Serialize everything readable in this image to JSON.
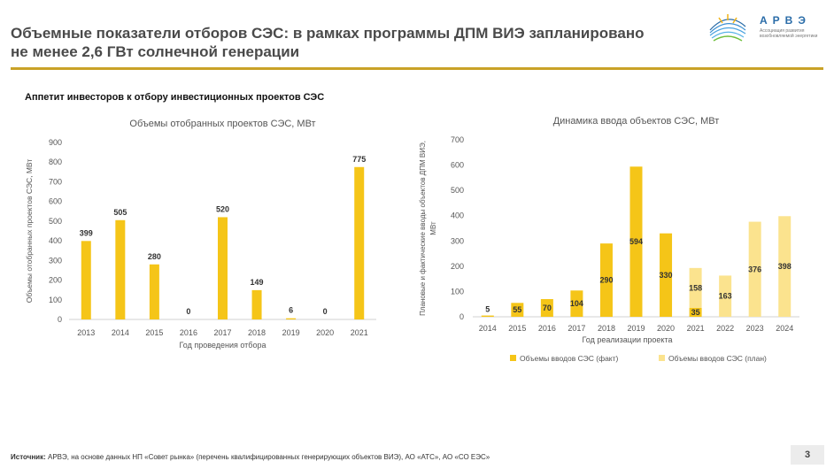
{
  "header": {
    "title_line1": "Объемные показатели отборов СЭС: в рамках программы ДПМ ВИЭ запланировано",
    "title_line2": "не менее 2,6 ГВт солнечной генерации",
    "logo_text": "АРВЭ",
    "logo_subtext": "Ассоциация развития возобновляемой энергетики"
  },
  "subheading": "Аппетит инвесторов к отбору инвестиционных проектов СЭС",
  "colors": {
    "fact": "#f5c518",
    "plan": "#fbe38e",
    "axis": "#d0d0d0",
    "accent": "#c9a227"
  },
  "chart_data": [
    {
      "type": "bar",
      "title": "Объемы отобранных проектов СЭС, МВт",
      "xlabel": "Год проведения отбора",
      "ylabel": "Объемы отобранных проектов СЭС, МВт",
      "categories": [
        "2013",
        "2014",
        "2015",
        "2016",
        "2017",
        "2018",
        "2019",
        "2020",
        "2021"
      ],
      "values": [
        399,
        505,
        280,
        0,
        520,
        149,
        6,
        0,
        775
      ],
      "ylim": [
        0,
        900
      ],
      "yticks": [
        0,
        100,
        200,
        300,
        400,
        500,
        600,
        700,
        800,
        900
      ],
      "data_labels": true
    },
    {
      "type": "bar",
      "title": "Динамика ввода объектов СЭС, МВт",
      "xlabel": "Год реализации проекта",
      "ylabel": "Плановые и фактические вводы объектов ДПМ ВИЭ, МВт",
      "categories": [
        "2014",
        "2015",
        "2016",
        "2017",
        "2018",
        "2019",
        "2020",
        "2021",
        "2022",
        "2023",
        "2024"
      ],
      "series": [
        {
          "name": "Объемы вводов СЭС (факт)",
          "values": [
            5,
            55,
            70,
            104,
            290,
            594,
            330,
            35,
            0,
            0,
            0
          ]
        },
        {
          "name": "Объемы вводов СЭС (план)",
          "values": [
            0,
            0,
            0,
            0,
            0,
            0,
            0,
            158,
            163,
            376,
            398
          ]
        }
      ],
      "ylim": [
        0,
        700
      ],
      "yticks": [
        0,
        100,
        200,
        300,
        400,
        500,
        600,
        700
      ],
      "legend_position": "bottom"
    }
  ],
  "source": {
    "label": "Источник:",
    "text": "АРВЭ, на основе данных НП «Совет рынка» (перечень квалифицированных генерирующих объектов ВИЭ), АО «АТС», АО «СО ЕЭС»"
  },
  "page_number": "3"
}
